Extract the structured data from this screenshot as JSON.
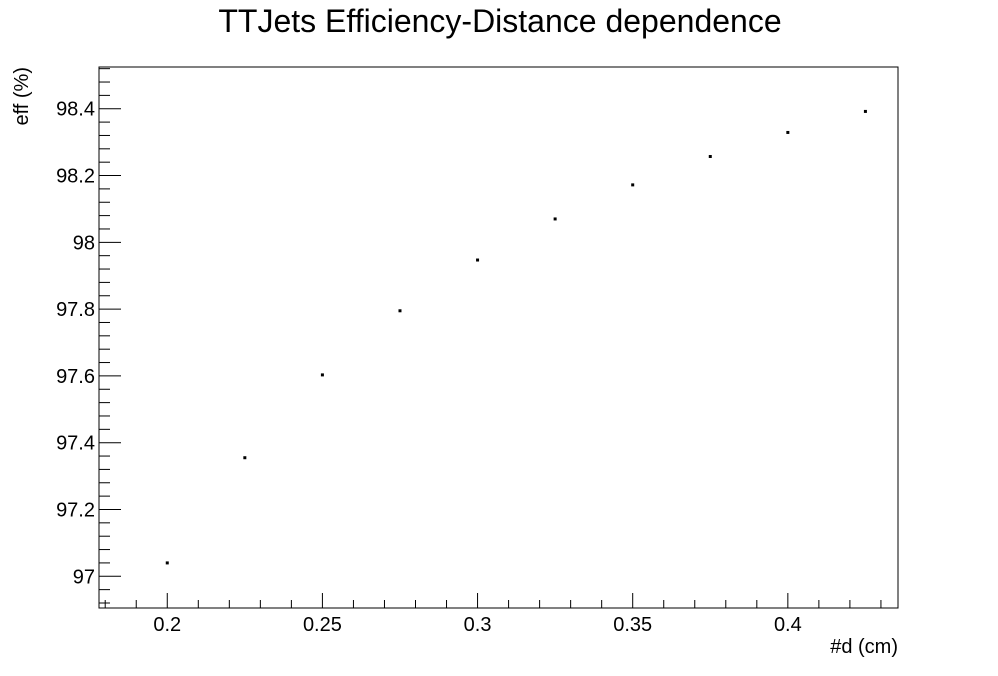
{
  "chart_data": {
    "type": "scatter",
    "title": "TTJets Efficiency-Distance dependence",
    "xlabel": "#d (cm)",
    "ylabel": "eff (%)",
    "xlim": [
      0.178,
      0.4355
    ],
    "ylim": [
      96.905,
      98.525
    ],
    "x_ticks": [
      0.2,
      0.25,
      0.3,
      0.35,
      0.4
    ],
    "x_tick_labels": [
      "0.2",
      "0.25",
      "0.3",
      "0.35",
      "0.4"
    ],
    "y_ticks": [
      97.0,
      97.2,
      97.4,
      97.6,
      97.8,
      98.0,
      98.2,
      98.4
    ],
    "y_tick_labels": [
      "97",
      "97.2",
      "97.4",
      "97.6",
      "97.8",
      "98",
      "98.2",
      "98.4"
    ],
    "grid": false,
    "series": [
      {
        "x": [
          0.2,
          0.225,
          0.25,
          0.275,
          0.3,
          0.325,
          0.35,
          0.375,
          0.4,
          0.425
        ],
        "y": [
          97.04,
          97.355,
          97.603,
          97.795,
          97.947,
          98.07,
          98.172,
          98.257,
          98.329,
          98.392
        ]
      }
    ]
  }
}
